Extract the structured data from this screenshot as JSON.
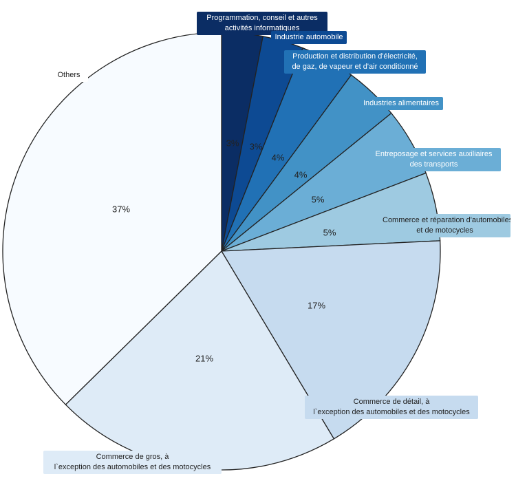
{
  "chart_data": {
    "type": "pie",
    "title": "",
    "start": "top, clockwise",
    "slices": [
      {
        "label_lines": [
          "Programmation, conseil et autres",
          "activités informatiques"
        ],
        "value": 3,
        "value_label": "3%",
        "color": "#0b2d64",
        "text_color": "#ffffff"
      },
      {
        "label_lines": [
          "Industrie automobile"
        ],
        "value": 3,
        "value_label": "3%",
        "color": "#0d4a93",
        "text_color": "#ffffff"
      },
      {
        "label_lines": [
          "Production et distribution d'électricité,",
          "de gaz, de vapeur et d'air conditionné"
        ],
        "value": 4,
        "value_label": "4%",
        "color": "#2171b5",
        "text_color": "#ffffff"
      },
      {
        "label_lines": [
          "Industries alimentaires"
        ],
        "value": 4,
        "value_label": "4%",
        "color": "#4292c6",
        "text_color": "#ffffff"
      },
      {
        "label_lines": [
          "Entreposage et services auxiliaires",
          "des transports"
        ],
        "value": 5,
        "value_label": "5%",
        "color": "#6baed6",
        "text_color": "#ffffff"
      },
      {
        "label_lines": [
          "Commerce et réparation d'automobiles",
          "et de motocycles"
        ],
        "value": 5,
        "value_label": "5%",
        "color": "#9ecae1",
        "text_color": "#222222"
      },
      {
        "label_lines": [
          "Commerce de détail, à",
          "l`exception des automobiles et des motocycles"
        ],
        "value": 17,
        "value_label": "17%",
        "color": "#c6dbef",
        "text_color": "#222222"
      },
      {
        "label_lines": [
          "Commerce de gros, à",
          "l`exception des automobiles et des motocycles"
        ],
        "value": 21,
        "value_label": "21%",
        "color": "#deebf7",
        "text_color": "#222222"
      },
      {
        "label_lines": [
          "Others"
        ],
        "value": 37,
        "value_label": "37%",
        "color": "#f7fbff",
        "text_color": "#222222"
      }
    ]
  }
}
